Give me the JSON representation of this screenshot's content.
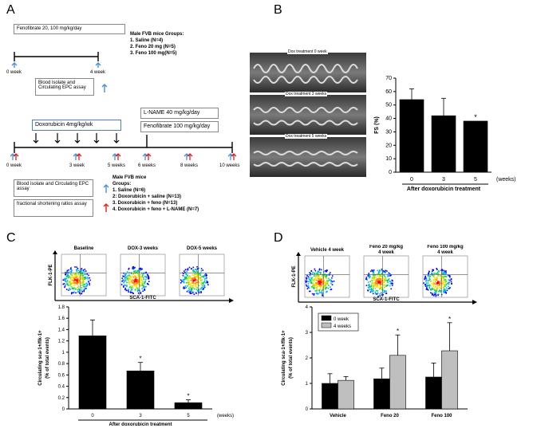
{
  "panelA": {
    "letter": "A",
    "top": {
      "fenofibrate": "Fenofibrate 20, 100 mg/kg/day",
      "t0": "0 week",
      "t4": "4 week",
      "groups_title": "Male FVB  mice Groups:",
      "groups": [
        "1. Saline (N=4)",
        "2. Feno 20 mg (N=5)",
        "3. Feno 100 mg(N=5)"
      ],
      "assay": "Blood isolate and Circulating EPC assay"
    },
    "bottom": {
      "lname": "L-NAME 40 mg/kg/day",
      "doxo": "Doxorubicin 4mg/kg/wk",
      "feno": "Fenofibrate 100 mg/kg/day",
      "ticks": [
        "0 week",
        "3 week",
        "5 weeks",
        "6 weeks",
        "8 weeks",
        "10 weeks"
      ],
      "assay": "Blood isolate and Circulating EPC assay",
      "fs_assay": "fractional shortening ratios assay",
      "groups_title": "Male FVB  mice",
      "groups_sub": "Groups:",
      "groups": [
        "1. Saline (N=6)",
        "2: Doxorubicin + saline (N=13)",
        "3. Doxorubicin + feno (N=13)",
        "4. Doxorubicin + feno  + L-NAME (N=7)"
      ]
    }
  },
  "panelB": {
    "letter": "B",
    "echo_labels": [
      "Dox treatment 0 week",
      "Dox treatment 3 weeks",
      "Dox treatment 5 weeks"
    ],
    "chart": {
      "type": "bar",
      "categories": [
        "0",
        "3",
        "5"
      ],
      "values": [
        54,
        42,
        38
      ],
      "errors": [
        8,
        13,
        0
      ],
      "ylabel": "FS (%)",
      "xlabel": "After doxorubicin treatment",
      "unit": "(weeks)",
      "ylim": [
        0,
        70
      ],
      "yticks": [
        "0",
        "10",
        "20",
        "30",
        "40",
        "50",
        "60",
        "70"
      ],
      "stars": [
        "",
        "",
        "*"
      ]
    }
  },
  "panelC": {
    "letter": "C",
    "flow_titles": [
      "Baseline",
      "DOX-3 weeks",
      "DOX-5 weeks"
    ],
    "y_axis": "FLK-1-PE",
    "x_axis": "SCA-1-FITC",
    "chart": {
      "type": "bar",
      "categories": [
        "0",
        "3",
        "5"
      ],
      "values": [
        1.29,
        0.67,
        0.11
      ],
      "errors": [
        0.28,
        0.15,
        0.05
      ],
      "ylabel": "Circulating sca-1+/flk-1+",
      "ylabel2": "(% of total events)",
      "xlabel": "After doxorubicin treatment",
      "unit": "(weeks)",
      "ylim": [
        0,
        1.8
      ],
      "yticks": [
        "0",
        "0.2",
        "0.4",
        "0.6",
        "0.8",
        "1",
        "1.2",
        "1.4",
        "1.6",
        "1.8"
      ],
      "stars": [
        "",
        "*",
        "*"
      ]
    }
  },
  "panelD": {
    "letter": "D",
    "flow_titles": [
      "Vehicle 4 week",
      "Feno 20 mg/kg\n4 week",
      "Feno 100 mg/kg\n4 week"
    ],
    "y_axis": "FLK-1-PE",
    "x_axis": "SCA-1-FITC",
    "chart": {
      "type": "bar",
      "categories": [
        "Vehicle",
        "Feno 20",
        "Feno 100"
      ],
      "series": [
        {
          "name": "0 week",
          "values": [
            1.0,
            1.18,
            1.25
          ],
          "errors": [
            0.38,
            0.42,
            0.55
          ],
          "color": "#000000"
        },
        {
          "name": "4 weeks",
          "values": [
            1.12,
            2.1,
            2.28
          ],
          "errors": [
            0.15,
            0.8,
            1.1
          ],
          "color": "#bfbfbf"
        }
      ],
      "ylabel": "Circulating sca-1+/flk-1+",
      "ylabel2": "(% of total events)",
      "ylim": [
        0,
        4
      ],
      "yticks": [
        "0",
        "1",
        "2",
        "3",
        "4"
      ],
      "stars": [
        "",
        "*",
        "*"
      ],
      "legend": "top-left"
    }
  }
}
